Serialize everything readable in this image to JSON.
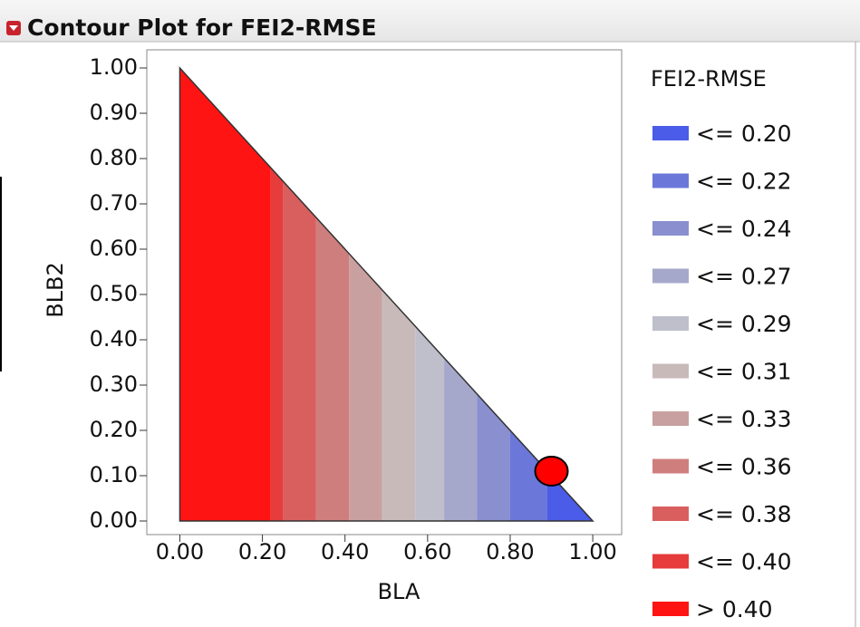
{
  "chart_data": {
    "type": "contour",
    "title": "Contour Plot for FEI2-RMSE",
    "x_label": "BLA",
    "y_label": "BLB2",
    "legend_title": "FEI2-RMSE",
    "xlim": [
      -0.08,
      1.07
    ],
    "ylim": [
      -0.03,
      1.04
    ],
    "xticks": [
      {
        "value": 0,
        "label": "0.00"
      },
      {
        "value": 0.2,
        "label": "0.20"
      },
      {
        "value": 0.4,
        "label": "0.40"
      },
      {
        "value": 0.6,
        "label": "0.60"
      },
      {
        "value": 0.8,
        "label": "0.80"
      },
      {
        "value": 1,
        "label": "1.00"
      }
    ],
    "yticks": [
      {
        "value": 0,
        "label": "0.00"
      },
      {
        "value": 0.1,
        "label": "0.10"
      },
      {
        "value": 0.2,
        "label": "0.20"
      },
      {
        "value": 0.3,
        "label": "0.30"
      },
      {
        "value": 0.4,
        "label": "0.40"
      },
      {
        "value": 0.5,
        "label": "0.50"
      },
      {
        "value": 0.6,
        "label": "0.60"
      },
      {
        "value": 0.7,
        "label": "0.70"
      },
      {
        "value": 0.8,
        "label": "0.80"
      },
      {
        "value": 0.9,
        "label": "0.90"
      },
      {
        "value": 1,
        "label": "1.00"
      }
    ],
    "region": {
      "x": [
        0,
        0,
        1
      ],
      "y": [
        0,
        1,
        0
      ]
    },
    "levels": [
      {
        "label": "<= 0.20",
        "value": 0.2,
        "color": "#4a5ce8",
        "x_range": [
          0.89,
          1.0
        ]
      },
      {
        "label": "<= 0.22",
        "value": 0.22,
        "color": "#6b77d9",
        "x_range": [
          0.8,
          0.89
        ]
      },
      {
        "label": "<= 0.24",
        "value": 0.24,
        "color": "#8a8fd0",
        "x_range": [
          0.72,
          0.8
        ]
      },
      {
        "label": "<= 0.27",
        "value": 0.27,
        "color": "#a6a8cb",
        "x_range": [
          0.64,
          0.72
        ]
      },
      {
        "label": "<= 0.29",
        "value": 0.29,
        "color": "#bebfcb",
        "x_range": [
          0.57,
          0.64
        ]
      },
      {
        "label": "<= 0.31",
        "value": 0.31,
        "color": "#c9baba",
        "x_range": [
          0.49,
          0.57
        ]
      },
      {
        "label": "<= 0.33",
        "value": 0.33,
        "color": "#c9a0a0",
        "x_range": [
          0.41,
          0.49
        ]
      },
      {
        "label": "<= 0.36",
        "value": 0.36,
        "color": "#cf7e7e",
        "x_range": [
          0.33,
          0.41
        ]
      },
      {
        "label": "<= 0.38",
        "value": 0.38,
        "color": "#d95f5f",
        "x_range": [
          0.25,
          0.33
        ]
      },
      {
        "label": "<= 0.40",
        "value": 0.4,
        "color": "#e63c3c",
        "x_range": [
          0.22,
          0.25
        ]
      },
      {
        "label": "> 0.40",
        "value": 0.4,
        "color": "#ff1414",
        "x_range": [
          0,
          0.22
        ]
      }
    ],
    "point": {
      "x": 0.9,
      "y": 0.11,
      "color": "#ff0000"
    }
  }
}
